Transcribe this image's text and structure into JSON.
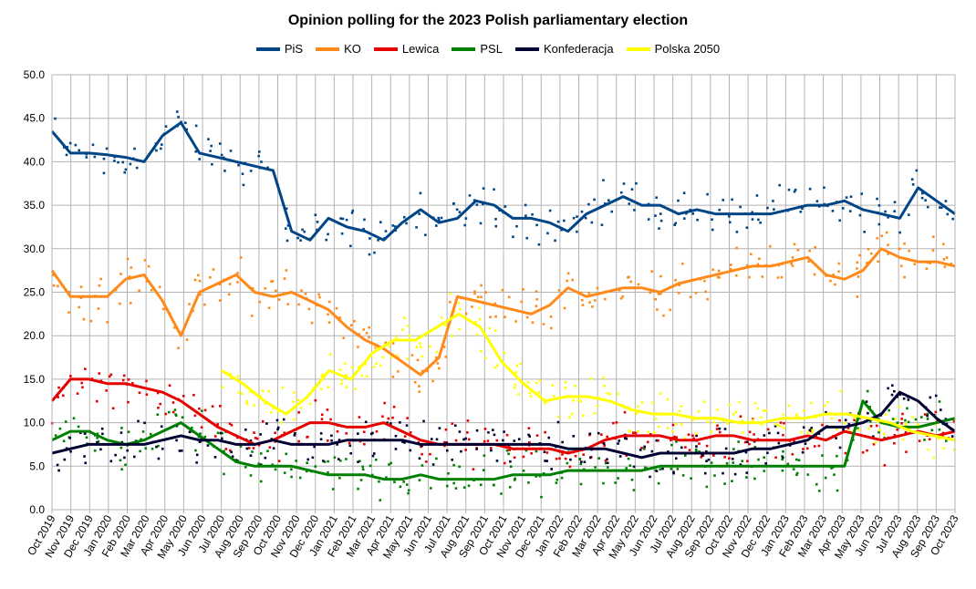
{
  "chart_data": {
    "type": "line",
    "title": "Opinion polling for the 2023 Polish parliamentary election",
    "legend_position": "top-center",
    "grid": true,
    "ylim": [
      0,
      50
    ],
    "y_ticks": [
      "0.0",
      "5.0",
      "10.0",
      "15.0",
      "20.0",
      "25.0",
      "30.0",
      "35.0",
      "40.0",
      "45.0",
      "50.0"
    ],
    "x_ticks": [
      "Oct 2019",
      "Nov 2019",
      "Dec 2019",
      "Jan 2020",
      "Feb 2020",
      "Mar 2020",
      "Apr 2020",
      "May 2020",
      "Jun 2020",
      "Jul 2020",
      "Aug 2020",
      "Sep 2020",
      "Oct 2020",
      "Nov 2020",
      "Dec 2020",
      "Jan 2021",
      "Feb 2021",
      "Mar 2021",
      "Apr 2021",
      "May 2021",
      "Jun 2021",
      "Jul 2021",
      "Aug 2021",
      "Sep 2021",
      "Oct 2021",
      "Nov 2021",
      "Dec 2021",
      "Jan 2022",
      "Feb 2022",
      "Mar 2022",
      "Apr 2022",
      "May 2022",
      "Jun 2022",
      "Jul 2022",
      "Aug 2022",
      "Sep 2022",
      "Oct 2022",
      "Nov 2022",
      "Dec 2022",
      "Jan 2023",
      "Feb 2023",
      "Mar 2023",
      "Apr 2023",
      "May 2023",
      "Jun 2023",
      "Jul 2023",
      "Aug 2023",
      "Sep 2023",
      "Oct 2023"
    ],
    "series": [
      {
        "name": "PiS",
        "color": "#004586",
        "values": [
          43.5,
          41,
          41,
          40.8,
          40.5,
          40,
          43,
          44.5,
          41,
          40.5,
          40,
          39.5,
          39,
          32,
          31,
          33.5,
          32.5,
          32,
          31,
          33,
          34.5,
          33,
          33.5,
          35.5,
          35,
          33.5,
          33.5,
          33,
          32,
          34,
          35,
          36,
          35,
          35,
          34,
          34.5,
          34,
          34,
          34,
          34,
          34.5,
          35,
          35,
          35.5,
          34.5,
          34,
          33.5,
          37,
          35.5,
          34
        ]
      },
      {
        "name": "KO",
        "color": "#ff8a1a",
        "values": [
          27.5,
          24.5,
          24.5,
          24.5,
          26.5,
          27,
          24,
          20,
          25,
          26,
          27,
          25,
          24.5,
          25,
          24,
          23,
          21,
          19.5,
          18.5,
          17,
          15.5,
          17.5,
          24.5,
          24,
          23.5,
          23,
          22.5,
          23.5,
          25.5,
          24.5,
          25,
          25.5,
          25.5,
          25,
          26,
          26.5,
          27,
          27.5,
          28,
          28,
          28.5,
          29,
          27,
          26.5,
          27.5,
          30,
          29,
          28.5,
          28.5,
          28
        ]
      },
      {
        "name": "Lewica",
        "color": "#e60000",
        "values": [
          12.5,
          15,
          15,
          14.5,
          14.5,
          14,
          13.5,
          12.5,
          11,
          9.5,
          8.5,
          7.5,
          8,
          9,
          10,
          10,
          9.5,
          9.5,
          10,
          9,
          8,
          7.5,
          7.5,
          7.5,
          7.5,
          7,
          7,
          7,
          6.5,
          7,
          8,
          8.5,
          8.5,
          8.5,
          8,
          8,
          8.5,
          8.5,
          8,
          8,
          8,
          8.5,
          8,
          9,
          8.5,
          8,
          8.5,
          9,
          8.5,
          9
        ]
      },
      {
        "name": "PSL",
        "color": "#008000",
        "values": [
          8,
          9,
          9,
          8,
          7.5,
          8,
          9,
          10,
          8.5,
          7,
          5.5,
          5,
          5,
          5,
          4.5,
          4,
          4,
          4,
          3.5,
          3.5,
          4,
          3.5,
          3.5,
          3.5,
          3.5,
          4,
          4,
          4,
          4.5,
          4.5,
          4.5,
          4.5,
          4.5,
          5,
          5,
          5,
          5,
          5,
          5,
          5,
          5,
          5,
          5,
          5,
          12.5,
          10,
          9.5,
          9.5,
          10,
          10.5
        ]
      },
      {
        "name": "Konfederacja",
        "color": "#000033",
        "values": [
          6.5,
          7,
          7.5,
          7.5,
          7.5,
          7.5,
          8,
          8.5,
          8,
          8,
          7.5,
          7.5,
          8,
          7.5,
          7.5,
          7.5,
          8,
          8,
          8,
          8,
          7.5,
          7.5,
          7.5,
          7.5,
          7.5,
          7.5,
          7.5,
          7.5,
          7,
          7,
          7,
          6.5,
          6,
          6.5,
          6.5,
          6.5,
          6.5,
          6.5,
          7,
          7,
          7.5,
          8,
          9.5,
          9.5,
          10,
          11,
          13.5,
          12.5,
          10.5,
          9
        ]
      },
      {
        "name": "Polska 2050",
        "color": "#ffff00",
        "x_start_index": 9,
        "values": [
          16,
          14.5,
          12.5,
          11,
          13,
          16,
          15,
          18,
          19.5,
          19.5,
          21,
          22.5,
          21,
          17,
          14.5,
          12.5,
          13,
          13,
          12.5,
          11.5,
          11,
          11,
          10.5,
          10.5,
          10,
          10,
          10.5,
          10.5,
          11,
          11,
          10.5,
          10,
          9,
          8.5,
          8
        ]
      }
    ]
  }
}
